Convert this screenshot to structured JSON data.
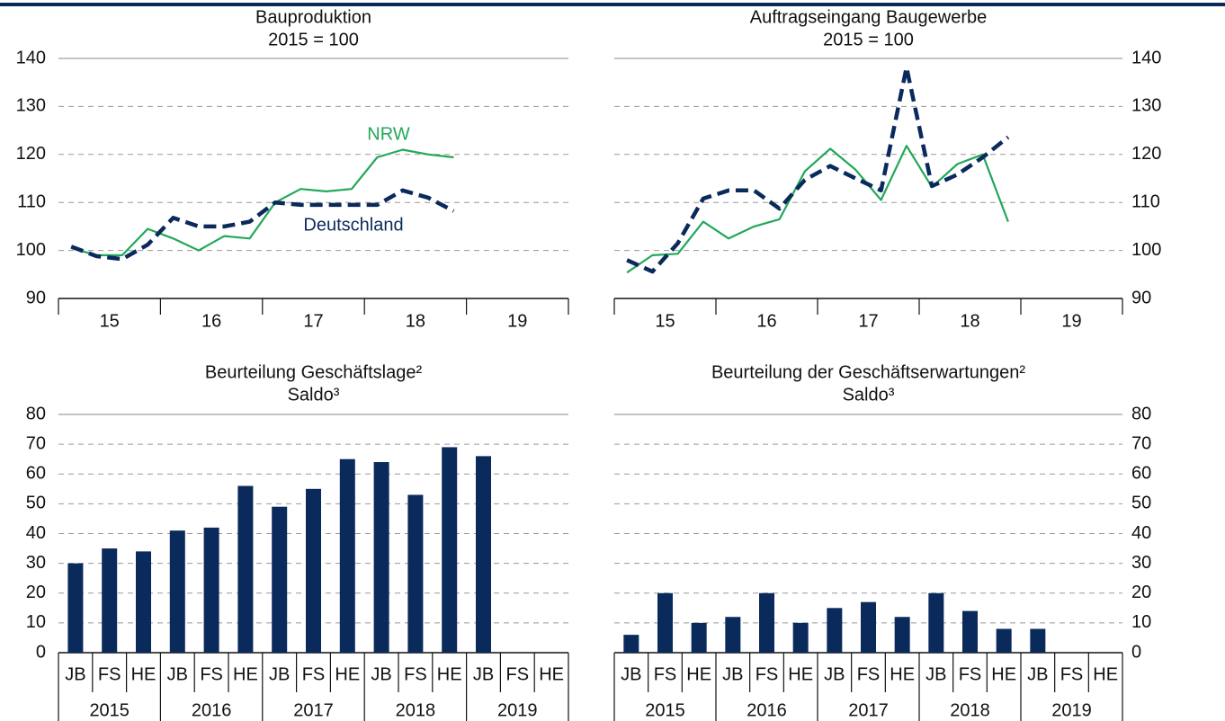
{
  "chart_data": [
    {
      "type": "line",
      "title": "Bauproduktion",
      "subtitle": "2015 = 100",
      "axis_side": "left",
      "year_labels": [
        "15",
        "16",
        "17",
        "18",
        "19"
      ],
      "periods_per_year": 4,
      "ylim": [
        90,
        140
      ],
      "yticks": [
        90,
        100,
        110,
        120,
        130,
        140
      ],
      "series": [
        {
          "name": "NRW",
          "color": "#22a85a",
          "dashed": false,
          "values": [
            100.5,
            99,
            99,
            104.5,
            102.5,
            100,
            103,
            102.5,
            110,
            112.8,
            112.3,
            112.8,
            119.4,
            121,
            120,
            119.4
          ]
        },
        {
          "name": "Deutschland",
          "color": "#0b2a5c",
          "dashed": true,
          "values": [
            100.8,
            98.8,
            98.2,
            101.2,
            106.8,
            105,
            105,
            106,
            110,
            109.5,
            109.5,
            109.5,
            109.5,
            112.5,
            111,
            108.2
          ]
        }
      ]
    },
    {
      "type": "line",
      "title": "Auftragseingang Baugewerbe",
      "subtitle": "2015 = 100",
      "axis_side": "right",
      "year_labels": [
        "15",
        "16",
        "17",
        "18",
        "19"
      ],
      "periods_per_year": 4,
      "ylim": [
        90,
        140
      ],
      "yticks": [
        90,
        100,
        110,
        120,
        130,
        140
      ],
      "series": [
        {
          "color": "#22a85a",
          "dashed": false,
          "values": [
            95.4,
            99,
            99.3,
            106,
            102.5,
            105,
            106.5,
            116.5,
            121.2,
            116.8,
            110.5,
            121.8,
            113.2,
            118,
            120,
            106
          ]
        },
        {
          "color": "#0b2a5c",
          "dashed": true,
          "values": [
            98,
            95.6,
            101.5,
            110.8,
            112.5,
            112.5,
            108.7,
            114.7,
            117.6,
            115,
            112.5,
            138.1,
            113.4,
            115.8,
            119.4,
            123.6
          ]
        }
      ]
    },
    {
      "type": "bar",
      "title": "Beurteilung Geschäftslage²",
      "subtitle": "Saldo³",
      "axis_side": "left",
      "categories": [
        "JB",
        "FS",
        "HE",
        "JB",
        "FS",
        "HE",
        "JB",
        "FS",
        "HE",
        "JB",
        "FS",
        "HE",
        "JB",
        "FS",
        "HE"
      ],
      "groups": [
        "2015",
        "2016",
        "2017",
        "2018",
        "2019"
      ],
      "ylim": [
        0,
        80
      ],
      "yticks": [
        0,
        10,
        20,
        30,
        40,
        50,
        60,
        70,
        80
      ],
      "color": "#0b2a5c",
      "values": [
        30,
        35,
        34,
        41,
        42,
        56,
        49,
        55,
        65,
        64,
        53,
        69,
        66,
        null,
        null
      ]
    },
    {
      "type": "bar",
      "title": "Beurteilung der Geschäftserwartungen²",
      "subtitle": "Saldo³",
      "axis_side": "right",
      "categories": [
        "JB",
        "FS",
        "HE",
        "JB",
        "FS",
        "HE",
        "JB",
        "FS",
        "HE",
        "JB",
        "FS",
        "HE",
        "JB",
        "FS",
        "HE"
      ],
      "groups": [
        "2015",
        "2016",
        "2017",
        "2018",
        "2019"
      ],
      "ylim": [
        0,
        80
      ],
      "yticks": [
        0,
        10,
        20,
        30,
        40,
        50,
        60,
        70,
        80
      ],
      "color": "#0b2a5c",
      "values": [
        6,
        20,
        10,
        12,
        20,
        10,
        15,
        17,
        12,
        20,
        14,
        8,
        8,
        null,
        null
      ]
    }
  ]
}
